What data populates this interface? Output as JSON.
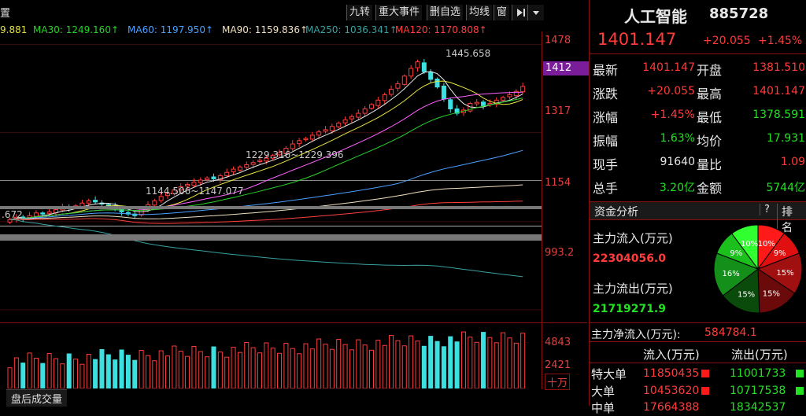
{
  "toolbar": {
    "left_cut": "置",
    "buttons": [
      "九转",
      "重大事件",
      "删自选",
      "均线",
      "窗"
    ],
    "menu_icon": "play-bar-icon",
    "dropdown_icon": "chevron-down-icon"
  },
  "ma_legend": [
    {
      "label": "9.881",
      "color": "#e0e040"
    },
    {
      "label": "MA30: 1249.160↑",
      "color": "#28d228"
    },
    {
      "label": "MA60: 1197.950↑",
      "color": "#4aa0ff"
    },
    {
      "label": "MA90: 1159.836↑",
      "color": "#f0e0c0"
    },
    {
      "label": "MA250: 1036.341↑",
      "color": "#38a0a0"
    },
    {
      "label": "MA120: 1170.808↑",
      "color": "#ff4040"
    }
  ],
  "price_axis": {
    "p1478": "1478",
    "p1317": "1317",
    "p1154": "1154",
    "p993": "993.2",
    "current": "1412"
  },
  "annotations": {
    "high": "1445.658",
    "mid": "1229.316~1229.396",
    "low": "1144.506~1147.077",
    "left": ".672"
  },
  "volume_axis": {
    "v1": "4843",
    "v2": "2421",
    "unit": "十万"
  },
  "bottom_tab": "盘后成交量",
  "chart_data": {
    "type": "candlestick",
    "ylim": [
      970,
      1490
    ],
    "y_ticks": [
      1478,
      1317,
      1154,
      993.2
    ],
    "close": [
      1158,
      1162,
      1160,
      1165,
      1170,
      1168,
      1172,
      1176,
      1180,
      1178,
      1183,
      1188,
      1192,
      1190,
      1186,
      1182,
      1178,
      1172,
      1168,
      1165,
      1178,
      1185,
      1192,
      1200,
      1206,
      1212,
      1218,
      1222,
      1226,
      1230,
      1234,
      1232,
      1238,
      1244,
      1250,
      1254,
      1258,
      1262,
      1266,
      1270,
      1275,
      1280,
      1288,
      1296,
      1302,
      1306,
      1312,
      1318,
      1322,
      1328,
      1334,
      1340,
      1346,
      1352,
      1360,
      1368,
      1376,
      1386,
      1396,
      1406,
      1420,
      1434,
      1446,
      1428,
      1414,
      1400,
      1378,
      1360,
      1352,
      1358,
      1370,
      1372,
      1366,
      1370,
      1376,
      1381,
      1386,
      1392,
      1401
    ],
    "volume_ylim": [
      0,
      5200
    ],
    "volume_ticks": [
      4843,
      2421
    ]
  },
  "panel": {
    "name": "人工智能",
    "code": "885728",
    "price": "1401.147",
    "change": "+20.055",
    "change_pct": "+1.45%",
    "rows": [
      {
        "l1": "最新",
        "v1": "1401.147",
        "c1": "red",
        "l2": "开盘",
        "v2": "1381.510",
        "c2": "red"
      },
      {
        "l1": "涨跌",
        "v1": "+20.055",
        "c1": "red",
        "l2": "最高",
        "v2": "1401.147",
        "c2": "red"
      },
      {
        "l1": "涨幅",
        "v1": "+1.45%",
        "c1": "red",
        "l2": "最低",
        "v2": "1378.591",
        "c2": "green"
      },
      {
        "l1": "振幅",
        "v1": "1.63%",
        "c1": "green",
        "l2": "均价",
        "v2": "17.931",
        "c2": "green"
      },
      {
        "l1": "现手",
        "v1": "91640",
        "c1": "white",
        "l2": "量比",
        "v2": "1.09",
        "c2": "red"
      },
      {
        "l1": "总手",
        "v1": "3.20亿",
        "c1": "green",
        "l2": "金额",
        "v2": "5744亿",
        "c2": "green"
      }
    ],
    "fund_title": "资金分析",
    "help": "?",
    "rank": "排名",
    "inflow_label": "主力流入(万元)",
    "inflow": "22304056.0",
    "outflow_label": "主力流出(万元)",
    "outflow": "21719271.9",
    "net_label": "主力净流入(万元):",
    "net": "584784.1",
    "pie": [
      {
        "label": "10%",
        "color": "#ff1a1a"
      },
      {
        "label": "9%",
        "color": "#e01010"
      },
      {
        "label": "15%",
        "color": "#a01010"
      },
      {
        "label": "15%",
        "color": "#6a0a0a"
      },
      {
        "label": "15%",
        "color": "#0a4a0a"
      },
      {
        "label": "16%",
        "color": "#14901a"
      },
      {
        "label": "9%",
        "color": "#1cc01c"
      },
      {
        "label": "10%",
        "color": "#30ff30"
      }
    ],
    "table_head": {
      "in": "流入(万元)",
      "out": "流出(万元)"
    },
    "table_rows": [
      {
        "label": "特大单",
        "in": "11850435",
        "out": "11001733"
      },
      {
        "label": "大单",
        "in": "10453620",
        "out": "10717538"
      },
      {
        "label": "中单",
        "in": "17664388",
        "out": "18342537"
      }
    ]
  }
}
